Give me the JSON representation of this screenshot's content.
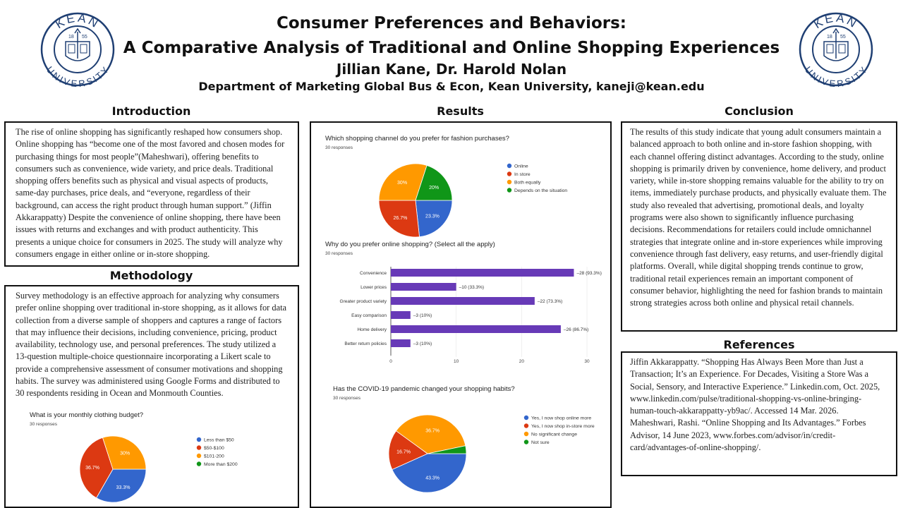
{
  "header": {
    "title_line1": "Consumer Preferences and Behaviors:",
    "title_line2": "A Comparative Analysis of Traditional and Online Shopping Experiences",
    "authors": "Jillian Kane, Dr. Harold Nolan",
    "affiliation": "Department of Marketing Global Bus & Econ, Kean University, kaneji@kean.edu",
    "logo": {
      "top": "KEAN",
      "bottom": "UNIVERSITY",
      "year_left": "18",
      "year_right": "55",
      "color": "#1f3f73"
    }
  },
  "sections": {
    "introduction": {
      "heading": "Introduction",
      "text": "The rise of online shopping has significantly reshaped how consumers shop. Online shopping has “become one of the most favored and chosen modes for purchasing things for most people”(Maheshwari), offering benefits to consumers such as convenience, wide variety, and price deals. Traditional shopping offers benefits such as physical and visual aspects of products, same-day purchases, price deals, and “everyone, regardless of their background, can access the right product through human support.” (Jiffin Akkarappatty) Despite the convenience of online shopping, there have been issues with returns and exchanges and with product authenticity. This presents a unique choice for consumers in 2025. The study will analyze why consumers engage in either online or in-store shopping."
    },
    "methodology": {
      "heading": "Methodology",
      "text": "Survey methodology is an effective approach for analyzing why consumers prefer online shopping over traditional in-store shopping, as it allows for data collection from a diverse sample of shoppers and captures a range of factors that may influence their decisions, including convenience, pricing, product availability, technology use, and personal preferences. The study utilized a 13-question multiple-choice questionnaire incorporating a Likert scale to provide a comprehensive assessment of consumer motivations and shopping habits. The survey was administered using Google Forms and distributed to 30 respondents residing in Ocean and Monmouth Counties."
    },
    "results": {
      "heading": "Results"
    },
    "conclusion": {
      "heading": "Conclusion",
      "text": "The results of this study indicate that young adult consumers maintain a balanced approach to both online and in-store fashion shopping, with each channel offering distinct advantages. According to the study, online shopping is primarily driven by convenience, home delivery, and product variety, while in-store shopping remains valuable for the ability to try on items, immediately purchase products, and physically evaluate them. The study also revealed that advertising, promotional deals, and loyalty programs were also shown to significantly influence purchasing decisions. Recommendations for retailers could include omnichannel strategies that integrate online and in-store experiences while improving convenience through fast delivery, easy returns, and user-friendly digital platforms. Overall, while digital shopping trends continue to grow, traditional retail experiences remain an important component of consumer behavior, highlighting the need for fashion brands to maintain strong strategies across both online and physical retail channels."
    },
    "references": {
      "heading": "References",
      "items": [
        "Jiffin Akkarappatty. “Shopping Has Always Been More than Just a Transaction; It’s an Experience. For Decades, Visiting a Store Was a Social, Sensory, and Interactive Experience.” Linkedin.com, Oct. 2025, www.linkedin.com/pulse/traditional-shopping-vs-online-bringing-human-touch-akkarappatty-yb9ac/. Accessed 14 Mar. 2026.",
        "Maheshwari, Rashi. “Online Shopping and Its Advantages.” Forbes Advisor, 14 June 2023, www.forbes.com/advisor/in/credit-card/advantages-of-online-shopping/."
      ]
    }
  },
  "chart_data": [
    {
      "type": "pie",
      "title": "Which shopping channel do you prefer for fashion purchases?",
      "subtitle": "30 responses",
      "categories": [
        "Online",
        "In store",
        "Both equally",
        "Depends on the situation"
      ],
      "values": [
        23.3,
        26.7,
        30,
        20
      ],
      "labels": [
        "23.3%",
        "26.7%",
        "30%",
        "20%"
      ],
      "colors": [
        "#3366cc",
        "#dc3912",
        "#ff9900",
        "#109618"
      ],
      "legend": "right"
    },
    {
      "type": "bar",
      "orientation": "horizontal",
      "title": "Why do you prefer online shopping? (Select all the apply)",
      "subtitle": "30 responses",
      "categories": [
        "Convenience",
        "Lower prices",
        "Greater product variety",
        "Easy comparison",
        "Home delivery",
        "Better return policies"
      ],
      "values": [
        28,
        10,
        22,
        3,
        26,
        3
      ],
      "labels": [
        "28 (93.3%)",
        "10 (33.3%)",
        "22 (73.3%)",
        "3 (10%)",
        "26 (86.7%)",
        "3 (10%)"
      ],
      "xlim": [
        0,
        30
      ],
      "xticks": [
        "0",
        "10",
        "20",
        "30"
      ],
      "color": "#673ab7",
      "grid": true
    },
    {
      "type": "pie",
      "title": "Has the COVID-19 pandemic changed your shopping habits?",
      "subtitle": "30 responses",
      "categories": [
        "Yes, I now shop online more",
        "Yes, I now shop in-store more",
        "No significant change",
        "Not sure"
      ],
      "values": [
        43.3,
        16.7,
        36.7,
        3.3
      ],
      "labels": [
        "43.3%",
        "16.7%",
        "36.7%",
        ""
      ],
      "colors": [
        "#3366cc",
        "#dc3912",
        "#ff9900",
        "#109618"
      ],
      "legend": "right"
    },
    {
      "type": "pie",
      "title": "What is your monthly clothing budget?",
      "subtitle": "30 responses",
      "categories": [
        "Less than $50",
        "$50-$100",
        "$101-200",
        "More than $200"
      ],
      "values": [
        33.3,
        36.7,
        30,
        0
      ],
      "labels": [
        "33.3%",
        "36.7%",
        "30%",
        ""
      ],
      "colors": [
        "#3366cc",
        "#dc3912",
        "#ff9900",
        "#109618"
      ],
      "legend": "right"
    }
  ]
}
